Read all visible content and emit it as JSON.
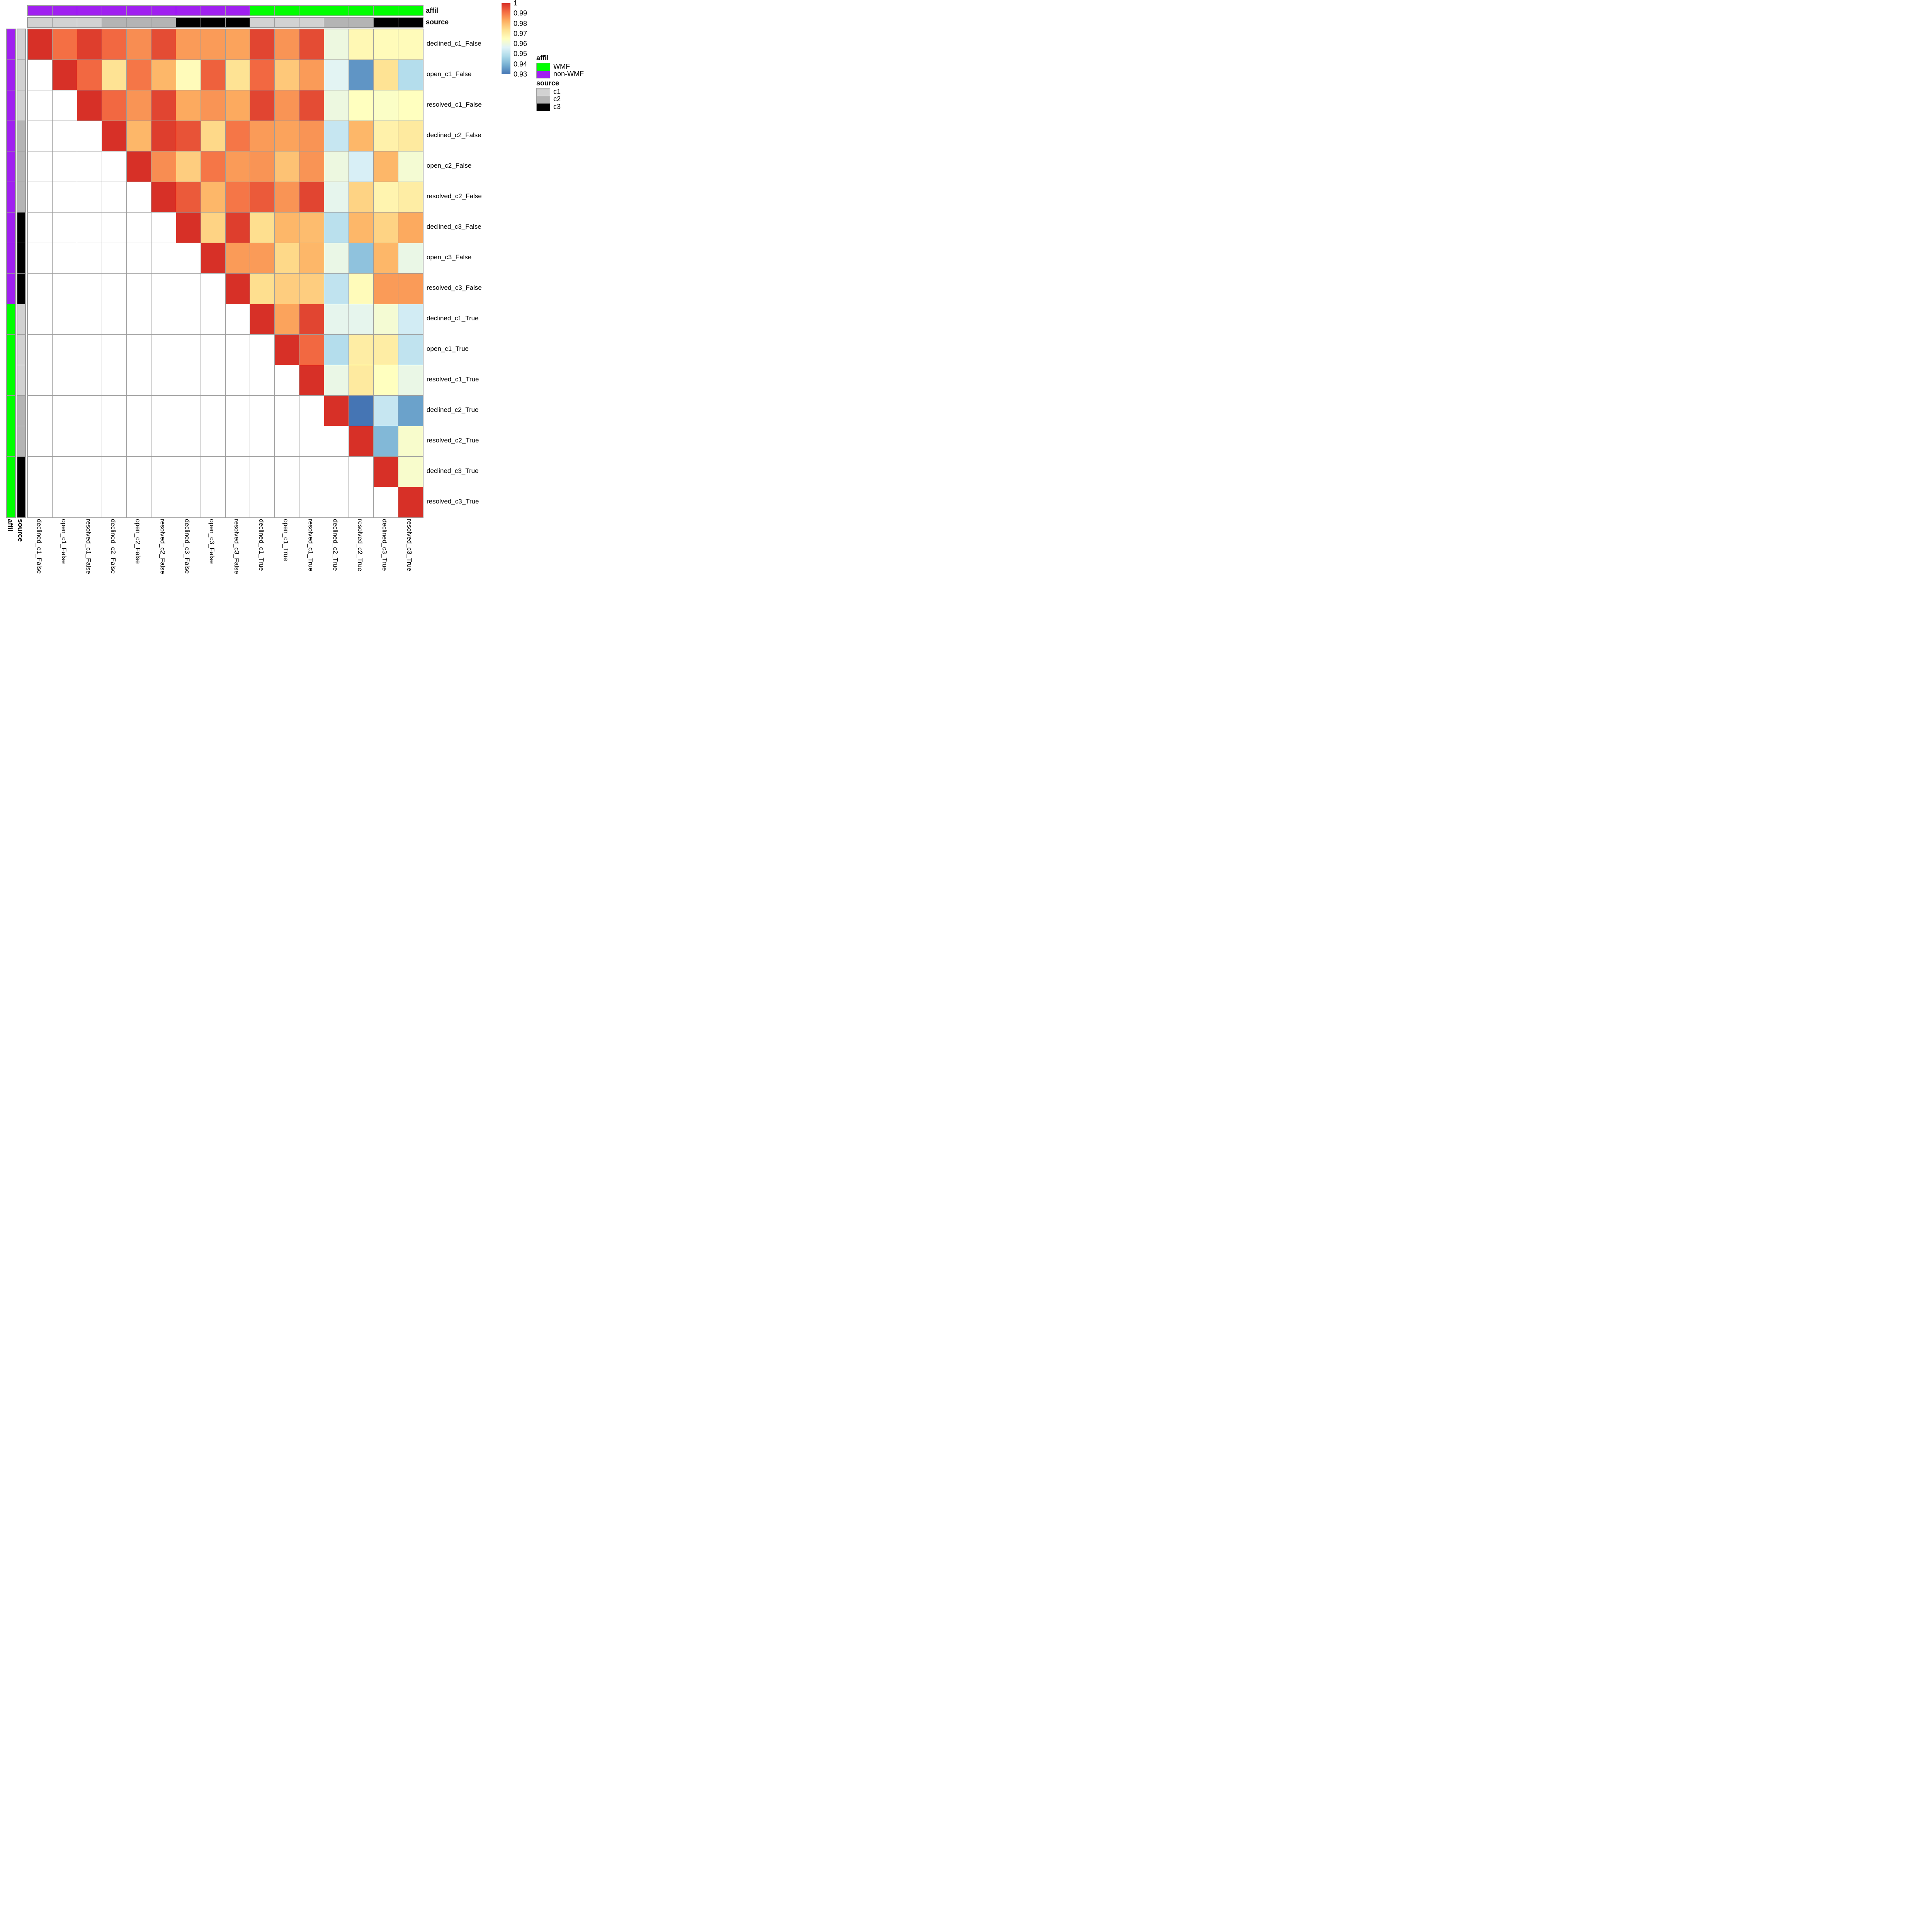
{
  "chart_data": {
    "type": "heatmap",
    "title": "",
    "labels": [
      "declined_c1_False",
      "open_c1_False",
      "resolved_c1_False",
      "declined_c2_False",
      "open_c2_False",
      "resolved_c2_False",
      "declined_c3_False",
      "open_c3_False",
      "resolved_c3_False",
      "declined_c1_True",
      "open_c1_True",
      "resolved_c1_True",
      "declined_c2_True",
      "resolved_c2_True",
      "declined_c3_True",
      "resolved_c3_True"
    ],
    "values": [
      [
        1,
        0.991,
        0.998,
        0.992,
        0.987,
        0.996,
        0.985,
        0.985,
        0.984,
        0.997,
        0.986,
        0.996,
        0.96,
        0.967,
        0.966,
        0.966
      ],
      [
        null,
        1,
        0.992,
        0.973,
        0.99,
        0.981,
        0.966,
        0.993,
        0.973,
        0.992,
        0.978,
        0.985,
        0.957,
        0.935,
        0.973,
        0.949
      ],
      [
        null,
        null,
        1,
        0.992,
        0.986,
        0.997,
        0.983,
        0.986,
        0.983,
        0.997,
        0.986,
        0.996,
        0.96,
        0.965,
        0.964,
        0.965
      ],
      [
        null,
        null,
        null,
        1,
        0.981,
        0.998,
        0.995,
        0.975,
        0.99,
        0.985,
        0.984,
        0.986,
        0.952,
        0.981,
        0.969,
        0.971
      ],
      [
        null,
        null,
        null,
        null,
        1,
        0.987,
        0.977,
        0.99,
        0.985,
        0.986,
        0.979,
        0.986,
        0.96,
        0.955,
        0.981,
        0.962
      ],
      [
        null,
        null,
        null,
        null,
        null,
        1,
        0.994,
        0.981,
        0.99,
        0.994,
        0.986,
        0.997,
        0.958,
        0.976,
        0.968,
        0.97
      ],
      [
        null,
        null,
        null,
        null,
        null,
        null,
        1,
        0.976,
        0.998,
        0.974,
        0.981,
        0.98,
        0.95,
        0.981,
        0.976,
        0.983
      ],
      [
        null,
        null,
        null,
        null,
        null,
        null,
        null,
        1,
        0.985,
        0.985,
        0.975,
        0.981,
        0.959,
        0.943,
        0.981,
        0.959
      ],
      [
        null,
        null,
        null,
        null,
        null,
        null,
        null,
        null,
        1,
        0.974,
        0.977,
        0.977,
        0.951,
        0.966,
        0.985,
        0.985
      ],
      [
        null,
        null,
        null,
        null,
        null,
        null,
        null,
        null,
        null,
        1,
        0.984,
        0.997,
        0.958,
        0.958,
        0.962,
        0.954
      ],
      [
        null,
        null,
        null,
        null,
        null,
        null,
        null,
        null,
        null,
        null,
        1,
        0.992,
        0.949,
        0.97,
        0.97,
        0.951
      ],
      [
        null,
        null,
        null,
        null,
        null,
        null,
        null,
        null,
        null,
        null,
        null,
        1,
        0.959,
        0.971,
        0.965,
        0.959
      ],
      [
        null,
        null,
        null,
        null,
        null,
        null,
        null,
        null,
        null,
        null,
        null,
        null,
        1,
        0.93,
        0.952,
        0.937
      ],
      [
        null,
        null,
        null,
        null,
        null,
        null,
        null,
        null,
        null,
        null,
        null,
        null,
        null,
        1,
        0.941,
        0.963
      ],
      [
        null,
        null,
        null,
        null,
        null,
        null,
        null,
        null,
        null,
        null,
        null,
        null,
        null,
        null,
        1,
        0.963
      ],
      [
        null,
        null,
        null,
        null,
        null,
        null,
        null,
        null,
        null,
        null,
        null,
        null,
        null,
        null,
        null,
        1
      ]
    ],
    "value_range": [
      0.93,
      1
    ],
    "colorscale_stops": [
      {
        "value": 0.93,
        "color": "#4575b4"
      },
      {
        "value": 0.93875,
        "color": "#74add1"
      },
      {
        "value": 0.9475,
        "color": "#abd9e9"
      },
      {
        "value": 0.95625,
        "color": "#e0f3f8"
      },
      {
        "value": 0.965,
        "color": "#ffffbf"
      },
      {
        "value": 0.97375,
        "color": "#fee090"
      },
      {
        "value": 0.9825,
        "color": "#fdae61"
      },
      {
        "value": 0.99125,
        "color": "#f46d43"
      },
      {
        "value": 1.0,
        "color": "#d73027"
      }
    ],
    "annotations": {
      "affil": [
        "non-WMF",
        "non-WMF",
        "non-WMF",
        "non-WMF",
        "non-WMF",
        "non-WMF",
        "non-WMF",
        "non-WMF",
        "non-WMF",
        "WMF",
        "WMF",
        "WMF",
        "WMF",
        "WMF",
        "WMF",
        "WMF"
      ],
      "source": [
        "c1",
        "c1",
        "c1",
        "c2",
        "c2",
        "c2",
        "c3",
        "c3",
        "c3",
        "c1",
        "c1",
        "c1",
        "c2",
        "c2",
        "c3",
        "c3"
      ]
    },
    "annotation_titles": {
      "affil": "affil",
      "source": "source"
    },
    "colorbar": {
      "tick_labels": [
        "1",
        "0.99",
        "0.98",
        "0.97",
        "0.96",
        "0.95",
        "0.94",
        "0.93"
      ],
      "tick_values": [
        1,
        0.99,
        0.98,
        0.97,
        0.96,
        0.95,
        0.94,
        0.93
      ]
    },
    "legends": {
      "affil": {
        "title": "affil",
        "items": [
          {
            "label": "WMF",
            "color": "#00ff00"
          },
          {
            "label": "non-WMF",
            "color": "#a020f0"
          }
        ]
      },
      "source": {
        "title": "source",
        "items": [
          {
            "label": "c1",
            "color": "#d2d2d2"
          },
          {
            "label": "c2",
            "color": "#b4b4b4"
          },
          {
            "label": "c3",
            "color": "#000000"
          }
        ]
      }
    },
    "grid_color": "#9c9c9c",
    "empty_cell_color": "#ffffff",
    "background": "#ffffff"
  }
}
